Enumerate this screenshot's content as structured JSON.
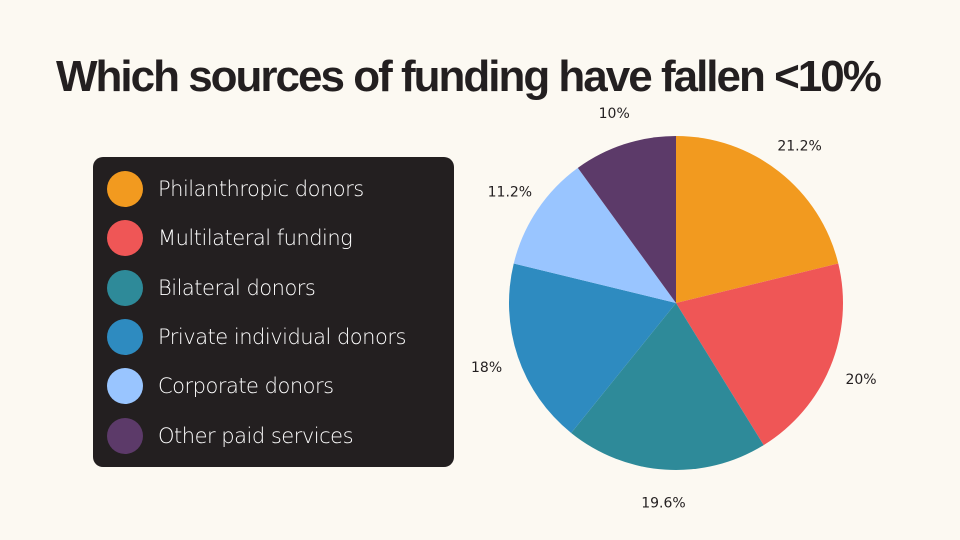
{
  "chart_data": {
    "type": "pie",
    "title": "Which sources of funding have fallen <10%",
    "categories": [
      "Philanthropic donors",
      "Multilateral funding",
      "Bilateral donors",
      "Private individual donors",
      "Corporate donors",
      "Other paid services"
    ],
    "values": [
      21.2,
      20,
      19.6,
      18,
      11.2,
      10
    ],
    "labels": [
      "21.2%",
      "20%",
      "19.6%",
      "18%",
      "11.2%",
      "10%"
    ],
    "colors": [
      "#F29A1F",
      "#EF5656",
      "#2E8A99",
      "#2E8BC0",
      "#99C5FF",
      "#5C3A69"
    ],
    "legend": "left"
  }
}
